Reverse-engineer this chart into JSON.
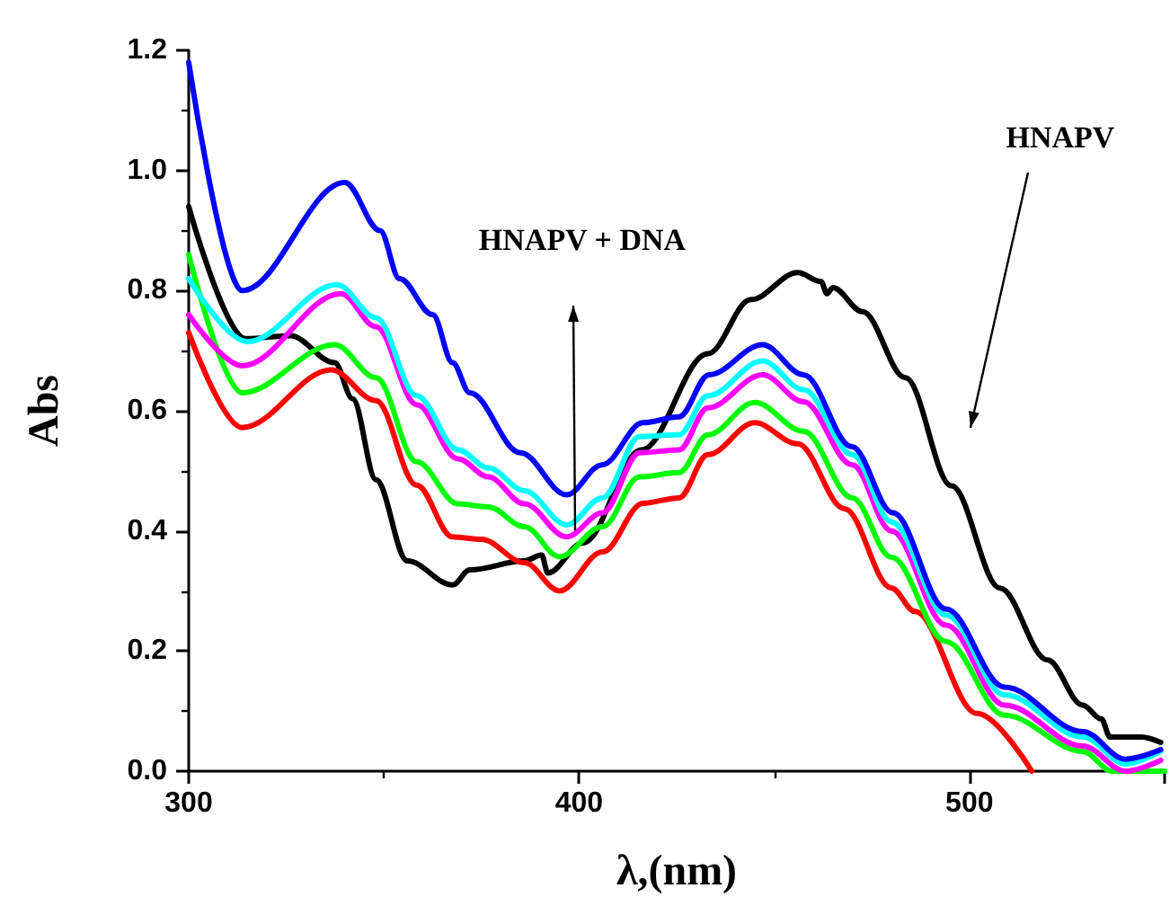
{
  "chart_data": {
    "type": "line",
    "xlabel": "λ,(nm)",
    "ylabel": "Abs",
    "xlim": [
      300,
      550
    ],
    "xticks": [
      300,
      400,
      500
    ],
    "ylim": [
      0,
      1.2
    ],
    "yticks": [
      {
        "value": 0,
        "label": "0.0"
      },
      {
        "value": 0.2,
        "label": "0.2"
      },
      {
        "value": 0.4,
        "label": "0.4"
      },
      {
        "value": 0.6,
        "label": "0.6"
      },
      {
        "value": 0.8,
        "label": "0.8"
      },
      {
        "value": 1,
        "label": "1.0"
      },
      {
        "value": 1.2,
        "label": "1.2"
      }
    ],
    "grid": false,
    "marker": "none",
    "line_style": "solid",
    "annotations": [
      "HNAPV + DNA",
      "HNAPV"
    ],
    "series": [
      {
        "color": "#000000",
        "x": [
          300,
          314.6,
          326,
          337.4,
          342,
          348,
          356,
          367.6,
          372,
          386,
          390.4,
          392,
          401,
          416,
          433,
          444,
          456,
          462,
          463.5,
          465,
          472.6,
          483.6,
          495.4,
          507.8,
          520,
          529,
          533.8,
          536,
          544,
          549
        ],
        "values": [
          0.94,
          0.72,
          0.725,
          0.68,
          0.62,
          0.485,
          0.35,
          0.31,
          0.335,
          0.35,
          0.36,
          0.33,
          0.38,
          0.535,
          0.695,
          0.785,
          0.83,
          0.815,
          0.795,
          0.805,
          0.765,
          0.655,
          0.475,
          0.305,
          0.185,
          0.11,
          0.087,
          0.057,
          0.057,
          0.048
        ]
      },
      {
        "color": "#ff0000",
        "x": [
          300,
          313.7,
          336.5,
          348,
          358.4,
          367.6,
          375,
          386,
          395,
          406,
          416.4,
          425.6,
          433,
          445,
          456,
          468,
          480,
          486,
          502,
          516
        ],
        "values": [
          0.73,
          0.572,
          0.668,
          0.617,
          0.476,
          0.39,
          0.386,
          0.347,
          0.3,
          0.365,
          0.446,
          0.455,
          0.527,
          0.58,
          0.545,
          0.437,
          0.305,
          0.266,
          0.096,
          0.0
        ]
      },
      {
        "color": "#00ff00",
        "x": [
          300,
          313.7,
          337.4,
          348,
          358.4,
          369,
          376.7,
          386,
          395,
          406,
          415.5,
          425.6,
          433,
          445,
          457.5,
          470,
          480,
          494,
          509,
          529,
          536.6,
          550
        ],
        "values": [
          0.86,
          0.63,
          0.71,
          0.655,
          0.515,
          0.445,
          0.44,
          0.407,
          0.357,
          0.407,
          0.49,
          0.497,
          0.56,
          0.614,
          0.566,
          0.455,
          0.356,
          0.216,
          0.093,
          0.033,
          0.0,
          0.0
        ]
      },
      {
        "color": "#ff00ff",
        "x": [
          300,
          313.7,
          339,
          348,
          358.4,
          369,
          376.7,
          386,
          396.8,
          406,
          415.5,
          425.6,
          433,
          447,
          457.5,
          470,
          480,
          494,
          509,
          529,
          540,
          549
        ],
        "values": [
          0.76,
          0.675,
          0.795,
          0.74,
          0.61,
          0.52,
          0.49,
          0.445,
          0.39,
          0.43,
          0.53,
          0.535,
          0.605,
          0.66,
          0.615,
          0.51,
          0.4,
          0.243,
          0.11,
          0.042,
          0.0,
          0.018
        ]
      },
      {
        "color": "#00ffff",
        "x": [
          300,
          315,
          338,
          348,
          358.4,
          369,
          376.7,
          386,
          396.8,
          406,
          415.5,
          425.6,
          433,
          447,
          457.5,
          470,
          480,
          494,
          509,
          529,
          540,
          549
        ],
        "values": [
          0.82,
          0.715,
          0.81,
          0.755,
          0.625,
          0.535,
          0.505,
          0.467,
          0.41,
          0.455,
          0.557,
          0.56,
          0.625,
          0.683,
          0.635,
          0.527,
          0.415,
          0.26,
          0.127,
          0.057,
          0.012,
          0.033
        ]
      },
      {
        "color": "#0000ff",
        "x": [
          300,
          313.7,
          340,
          349,
          354,
          362.5,
          367.6,
          372,
          385,
          396.8,
          405.9,
          416.4,
          425.6,
          433.3,
          447,
          457.5,
          469.9,
          480.4,
          494,
          509,
          529,
          540,
          549
        ],
        "values": [
          1.18,
          0.8,
          0.98,
          0.9,
          0.82,
          0.76,
          0.68,
          0.63,
          0.53,
          0.46,
          0.51,
          0.58,
          0.59,
          0.66,
          0.71,
          0.66,
          0.54,
          0.43,
          0.27,
          0.14,
          0.066,
          0.02,
          0.036
        ]
      }
    ]
  }
}
